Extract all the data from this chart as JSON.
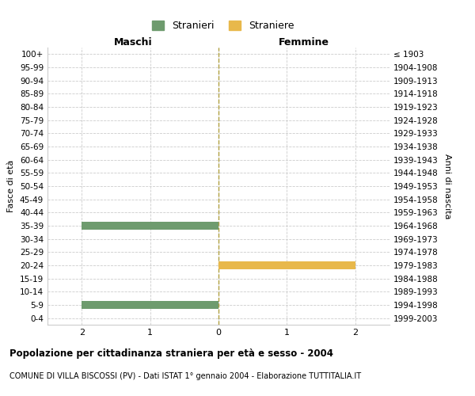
{
  "age_groups": [
    "100+",
    "95-99",
    "90-94",
    "85-89",
    "80-84",
    "75-79",
    "70-74",
    "65-69",
    "60-64",
    "55-59",
    "50-54",
    "45-49",
    "40-44",
    "35-39",
    "30-34",
    "25-29",
    "20-24",
    "15-19",
    "10-14",
    "5-9",
    "0-4"
  ],
  "birth_years": [
    "≤ 1903",
    "1904-1908",
    "1909-1913",
    "1914-1918",
    "1919-1923",
    "1924-1928",
    "1929-1933",
    "1934-1938",
    "1939-1943",
    "1944-1948",
    "1949-1953",
    "1954-1958",
    "1959-1963",
    "1964-1968",
    "1969-1973",
    "1974-1978",
    "1979-1983",
    "1984-1988",
    "1989-1993",
    "1994-1998",
    "1999-2003"
  ],
  "males": [
    0,
    0,
    0,
    0,
    0,
    0,
    0,
    0,
    0,
    0,
    0,
    0,
    0,
    2,
    0,
    0,
    0,
    0,
    0,
    2,
    0
  ],
  "females": [
    0,
    0,
    0,
    0,
    0,
    0,
    0,
    0,
    0,
    0,
    0,
    0,
    0,
    0,
    0,
    0,
    2,
    0,
    0,
    0,
    0
  ],
  "male_color": "#6e9b6e",
  "female_color": "#e8b84b",
  "background_color": "#ffffff",
  "grid_color": "#cccccc",
  "center_line_color": "#b0a040",
  "xlim": 2.5,
  "ylabel_left": "Fasce di età",
  "ylabel_right": "Anni di nascita",
  "label_maschi": "Maschi",
  "label_femmine": "Femmine",
  "legend_stranieri": "Stranieri",
  "legend_straniere": "Straniere",
  "title": "Popolazione per cittadinanza straniera per età e sesso - 2004",
  "subtitle": "COMUNE DI VILLA BISCOSSI (PV) - Dati ISTAT 1° gennaio 2004 - Elaborazione TUTTITALIA.IT"
}
